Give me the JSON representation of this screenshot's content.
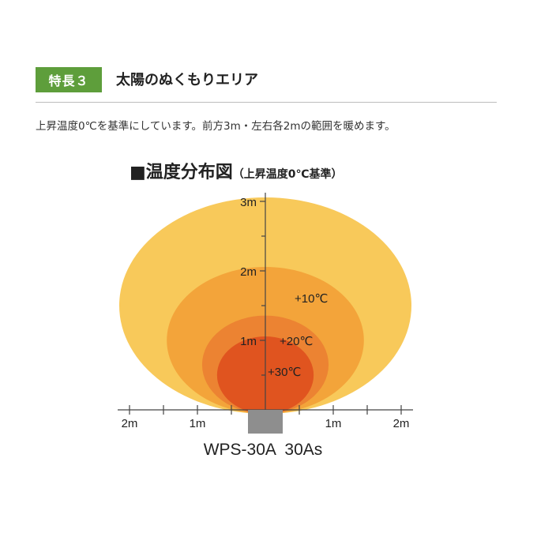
{
  "feature": {
    "badge": "特長３",
    "title": "太陽のぬくもりエリア",
    "description": "上昇温度0℃を基準にしています。前方3m・左右各2mの範囲を暖めます。"
  },
  "chart_data": {
    "type": "area",
    "title": "■温度分布図",
    "subtitle": "（上昇温度0℃基準）",
    "y_axis_labels": [
      "1m",
      "2m",
      "3m"
    ],
    "x_axis_labels": [
      "2m",
      "1m",
      "1m",
      "2m"
    ],
    "zones": [
      {
        "label": "",
        "temperature_rise_c": 0,
        "forward_reach_m": 3,
        "side_reach_m": 2,
        "color": "#f8c95a"
      },
      {
        "label": "+10℃",
        "temperature_rise_c": 10,
        "forward_reach_m": 2,
        "side_reach_m": 1.3,
        "color": "#f3a43a"
      },
      {
        "label": "+20℃",
        "temperature_rise_c": 20,
        "forward_reach_m": 1.3,
        "side_reach_m": 0.78,
        "color": "#ec8332"
      },
      {
        "label": "+30℃",
        "temperature_rise_c": 30,
        "forward_reach_m": 1,
        "side_reach_m": 0.56,
        "color": "#e0541f"
      }
    ],
    "heater_color": "#8e8e8e",
    "model_label": "WPS-30A  30As"
  },
  "colors": {
    "badge_bg": "#5e9e3b",
    "axis": "#444444"
  }
}
